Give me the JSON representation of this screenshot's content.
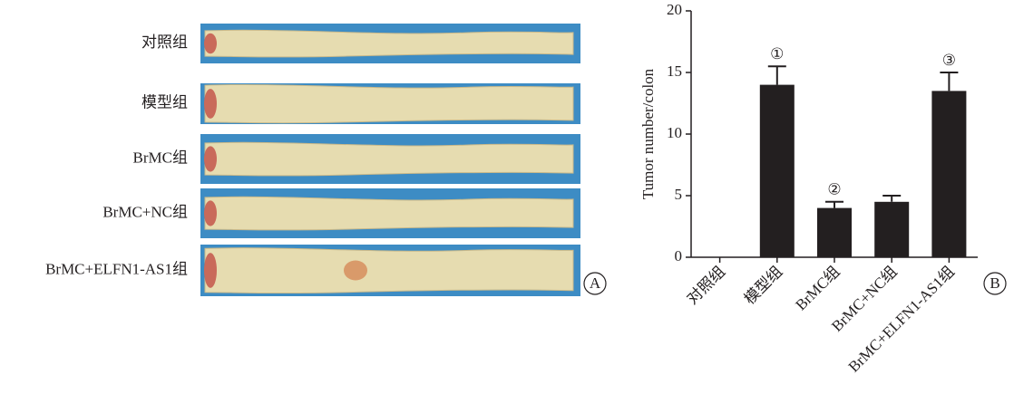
{
  "photo_panel": {
    "labels": [
      "对照组",
      "模型组",
      "BrMC组",
      "BrMC+NC组",
      "BrMC+ELFN1-AS1组"
    ],
    "panel_label": "A"
  },
  "chart_data": {
    "type": "bar",
    "panel_label": "B",
    "y_label": "Tumor number/colon",
    "categories": [
      "对照组",
      "模型组",
      "BrMC组",
      "BrMC+NC组",
      "BrMC+ELFN1-AS1组"
    ],
    "values": [
      0,
      14,
      4,
      4.5,
      13.5
    ],
    "errors": [
      null,
      1.5,
      0.5,
      0.5,
      1.5
    ],
    "bar_labels": [
      null,
      "①",
      "②",
      null,
      "③"
    ],
    "color": "#231f20",
    "ylim": [
      0,
      20
    ],
    "yticks": [
      0,
      5,
      10,
      15,
      20
    ]
  }
}
